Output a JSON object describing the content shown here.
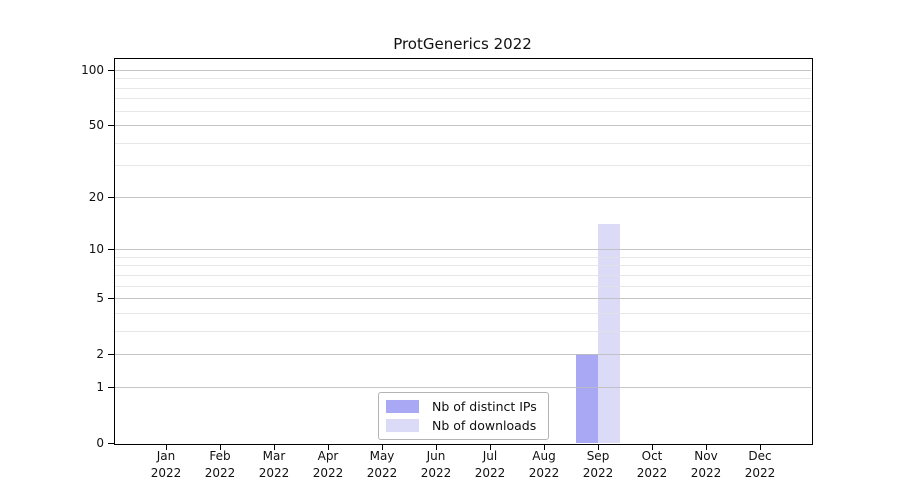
{
  "title": "ProtGenerics 2022",
  "colors": {
    "ips_bar": "#a8a8f5",
    "downloads_bar": "#dbdbf8",
    "major_grid": "#bcbcbc",
    "minor_grid": "#e1e1e1",
    "axis": "#000000",
    "legend_border": "#b3b3b3"
  },
  "chart_data": {
    "type": "bar",
    "title": "ProtGenerics 2022",
    "xlabel": "",
    "ylabel": "",
    "yscale": "log1p",
    "ylim": [
      0,
      110
    ],
    "grid": true,
    "legend_position": "bottom-center",
    "categories": [
      "Jan\n2022",
      "Feb\n2022",
      "Mar\n2022",
      "Apr\n2022",
      "May\n2022",
      "Jun\n2022",
      "Jul\n2022",
      "Aug\n2022",
      "Sep\n2022",
      "Oct\n2022",
      "Nov\n2022",
      "Dec\n2022"
    ],
    "yticks": [
      0,
      1,
      2,
      5,
      10,
      20,
      50,
      100
    ],
    "yticks_minor": [
      3,
      4,
      6,
      7,
      8,
      9,
      30,
      40,
      60,
      70,
      80,
      90
    ],
    "series": [
      {
        "name": "Nb of distinct IPs",
        "color": "#a8a8f5",
        "values": [
          0,
          0,
          0,
          0,
          0,
          0,
          0,
          0,
          2,
          0,
          0,
          0
        ]
      },
      {
        "name": "Nb of downloads",
        "color": "#dbdbf8",
        "values": [
          0,
          0,
          0,
          0,
          0,
          0,
          0,
          0,
          14,
          0,
          0,
          0
        ]
      }
    ]
  }
}
